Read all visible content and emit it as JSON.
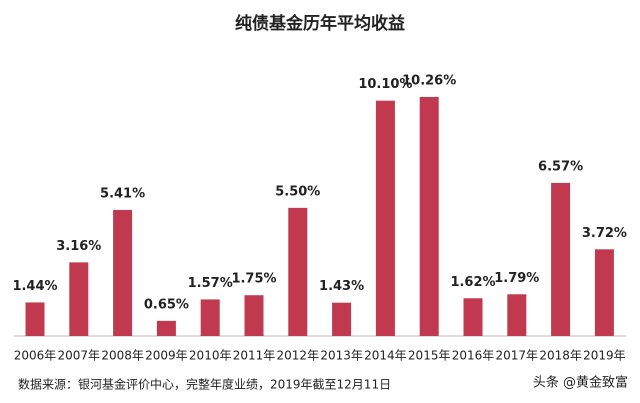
{
  "chart_data": {
    "type": "bar",
    "title": "纯债基金历年平均收益",
    "categories": [
      "2006年",
      "2007年",
      "2008年",
      "2009年",
      "2010年",
      "2011年",
      "2012年",
      "2013年",
      "2014年",
      "2015年",
      "2016年",
      "2017年",
      "2018年",
      "2019年"
    ],
    "values": [
      1.44,
      3.16,
      5.41,
      0.65,
      1.57,
      1.75,
      5.5,
      1.43,
      10.1,
      10.26,
      1.62,
      1.79,
      6.57,
      3.72
    ],
    "value_labels": [
      "1.44%",
      "3.16%",
      "5.41%",
      "0.65%",
      "1.57%",
      "1.75%",
      "5.50%",
      "1.43%",
      "10.10%",
      "10.26%",
      "1.62%",
      "1.79%",
      "6.57%",
      "3.72%"
    ],
    "color": "#c0394f"
  },
  "footer": {
    "source": "数据来源：银河基金评价中心，完整年度业绩，2019年截至12月11日",
    "watermark": "头条 @黄金致富"
  }
}
